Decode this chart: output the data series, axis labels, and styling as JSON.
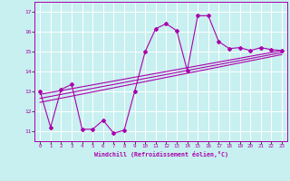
{
  "xlabel": "Windchill (Refroidissement éolien,°C)",
  "bg_color": "#c8f0f0",
  "line_color": "#aa00aa",
  "grid_color": "#ffffff",
  "xlim": [
    -0.5,
    23.5
  ],
  "ylim": [
    10.5,
    17.5
  ],
  "yticks": [
    11,
    12,
    13,
    14,
    15,
    16,
    17
  ],
  "xticks": [
    0,
    1,
    2,
    3,
    4,
    5,
    6,
    7,
    8,
    9,
    10,
    11,
    12,
    13,
    14,
    15,
    16,
    17,
    18,
    19,
    20,
    21,
    22,
    23
  ],
  "main_x": [
    0,
    1,
    2,
    3,
    4,
    5,
    6,
    7,
    8,
    9,
    10,
    11,
    12,
    13,
    14,
    15,
    16,
    17,
    18,
    19,
    20,
    21,
    22,
    23
  ],
  "main_y": [
    13.0,
    11.2,
    13.1,
    13.35,
    11.1,
    11.1,
    11.55,
    10.9,
    11.05,
    13.0,
    15.0,
    16.15,
    16.4,
    16.05,
    14.05,
    16.8,
    16.8,
    15.5,
    15.15,
    15.2,
    15.05,
    15.2,
    15.1,
    15.05
  ],
  "trend1_x": [
    0,
    23
  ],
  "trend1_y": [
    12.85,
    15.05
  ],
  "trend2_x": [
    0,
    23
  ],
  "trend2_y": [
    12.65,
    14.95
  ],
  "trend3_x": [
    0,
    23
  ],
  "trend3_y": [
    12.45,
    14.85
  ]
}
